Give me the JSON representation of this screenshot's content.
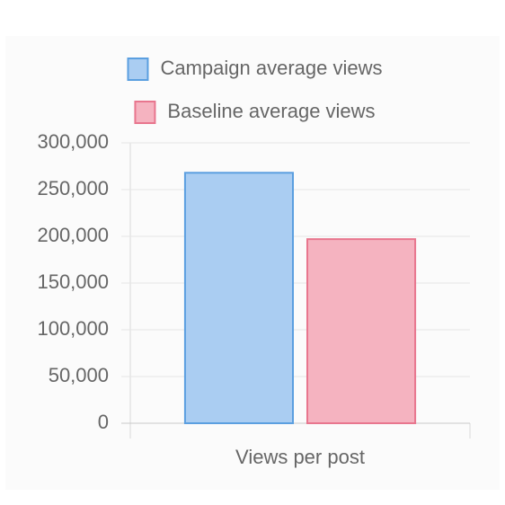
{
  "chart_data": {
    "type": "bar",
    "categories": [
      "Views per post"
    ],
    "series": [
      {
        "name": "Campaign average views",
        "color": "#5b9fe0",
        "fill": "#aacdf2",
        "values": [
          268000
        ]
      },
      {
        "name": "Baseline average views",
        "color": "#e8768e",
        "fill": "#f5b3c0",
        "values": [
          197000
        ]
      }
    ],
    "ylim": [
      0,
      300000
    ],
    "yticks": [
      0,
      {
        "value": 50000,
        "label": "50,000"
      },
      {
        "value": 100000,
        "label": "100,000"
      },
      {
        "value": 150000,
        "label": "150,000"
      },
      {
        "value": 200000,
        "label": "200,000"
      },
      {
        "value": 250000,
        "label": "250,000"
      },
      {
        "value": 300000,
        "label": "300,000"
      }
    ],
    "grid": true,
    "legend": "top"
  }
}
